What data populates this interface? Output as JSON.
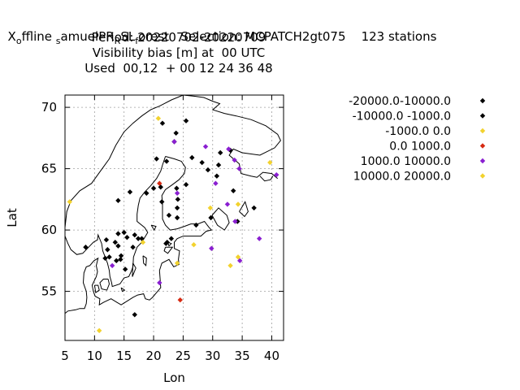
{
  "chart_data": {
    "type": "scatter",
    "title_lines": [
      "offline samuelPR R SL forest   Selection: MCPATCH2gt075    123 stations",
      "Period: 20220702-20220709",
      "Visibility bias [m] at  00 UTC",
      "Used  00,12  + 00 12 24 36 48"
    ],
    "title_parts": {
      "x_sym": "X",
      "x_sub": "o",
      "offline": "ffline ",
      "s_sub": "s",
      "samuel": "amuelPR",
      "r_sub": "R",
      "sl": "SL",
      "f_sub": "f",
      "rest": "orest   Selection: MCPATCH2gt075    123 stations"
    },
    "xlabel": "Lon",
    "ylabel": "Lat",
    "xlim": [
      5,
      42
    ],
    "ylim": [
      51,
      71
    ],
    "xticks": [
      "5",
      "10",
      "15",
      "20",
      "25",
      "30",
      "35",
      "40"
    ],
    "yticks": [
      "55",
      "60",
      "65",
      "70"
    ],
    "grid": true,
    "legend_position": "right",
    "series": [
      {
        "name": "-20000.0-10000.0",
        "color": "#000000",
        "points": []
      },
      {
        "name": "-10000.0 -1000.0",
        "color": "#000000",
        "points": [
          [
            21.5,
            68.7
          ],
          [
            25.5,
            68.9
          ],
          [
            23.8,
            67.9
          ],
          [
            23.5,
            67.2
          ],
          [
            20.5,
            65.8
          ],
          [
            26.5,
            65.9
          ],
          [
            28.2,
            65.5
          ],
          [
            31.3,
            66.3
          ],
          [
            31.0,
            65.3
          ],
          [
            33.0,
            66.5
          ],
          [
            22.2,
            65.6
          ],
          [
            29.2,
            64.9
          ],
          [
            30.7,
            64.4
          ],
          [
            25.5,
            63.7
          ],
          [
            23.9,
            63.4
          ],
          [
            21.2,
            63.5
          ],
          [
            20.0,
            63.4
          ],
          [
            18.8,
            63.0
          ],
          [
            16.0,
            63.1
          ],
          [
            14.0,
            62.4
          ],
          [
            24.1,
            62.5
          ],
          [
            21.4,
            62.3
          ],
          [
            24.0,
            61.8
          ],
          [
            22.6,
            61.2
          ],
          [
            24.0,
            61.0
          ],
          [
            33.5,
            63.2
          ],
          [
            37.0,
            61.8
          ],
          [
            34.2,
            60.7
          ],
          [
            27.2,
            60.4
          ],
          [
            29.7,
            61.0
          ],
          [
            8.5,
            58.6
          ],
          [
            12.0,
            59.2
          ],
          [
            13.5,
            59.0
          ],
          [
            14.0,
            59.7
          ],
          [
            15.0,
            59.8
          ],
          [
            15.5,
            59.4
          ],
          [
            14.0,
            58.7
          ],
          [
            12.2,
            58.4
          ],
          [
            11.8,
            57.7
          ],
          [
            12.5,
            57.8
          ],
          [
            13.7,
            57.5
          ],
          [
            14.5,
            57.9
          ],
          [
            15.2,
            56.8
          ],
          [
            16.5,
            58.6
          ],
          [
            16.8,
            59.6
          ],
          [
            17.4,
            59.3
          ],
          [
            18.0,
            59.3
          ],
          [
            22.1,
            58.9
          ],
          [
            22.3,
            59.0
          ],
          [
            23.0,
            59.3
          ],
          [
            16.8,
            53.1
          ],
          [
            14.4,
            57.6
          ]
        ]
      },
      {
        "name": "-1000.0 0.0",
        "color": "#f2d22e",
        "points": [
          [
            20.8,
            69.1
          ],
          [
            5.8,
            62.3
          ],
          [
            39.7,
            65.5
          ],
          [
            29.6,
            61.8
          ],
          [
            34.3,
            62.1
          ],
          [
            26.8,
            58.8
          ],
          [
            18.2,
            59.0
          ],
          [
            24.0,
            57.3
          ],
          [
            33.0,
            57.1
          ],
          [
            34.3,
            57.8
          ],
          [
            10.8,
            51.8
          ]
        ]
      },
      {
        "name": "0.0 1000.0",
        "color": "#d62a12",
        "points": [
          [
            21.0,
            63.8
          ],
          [
            24.5,
            54.3
          ]
        ]
      },
      {
        "name": "1000.0 10000.0",
        "color": "#8a1fd1",
        "points": [
          [
            23.5,
            67.2
          ],
          [
            28.8,
            66.8
          ],
          [
            32.7,
            66.6
          ],
          [
            33.7,
            65.7
          ],
          [
            34.5,
            65.0
          ],
          [
            40.8,
            64.5
          ],
          [
            30.5,
            63.8
          ],
          [
            24.0,
            63.0
          ],
          [
            32.5,
            62.1
          ],
          [
            33.8,
            60.7
          ],
          [
            29.8,
            58.5
          ],
          [
            37.9,
            59.3
          ],
          [
            34.6,
            57.5
          ],
          [
            13.0,
            57.1
          ],
          [
            21.0,
            55.7
          ]
        ]
      },
      {
        "name": "10000.0 20000.0",
        "color": "#f2d22e",
        "points": []
      }
    ]
  }
}
